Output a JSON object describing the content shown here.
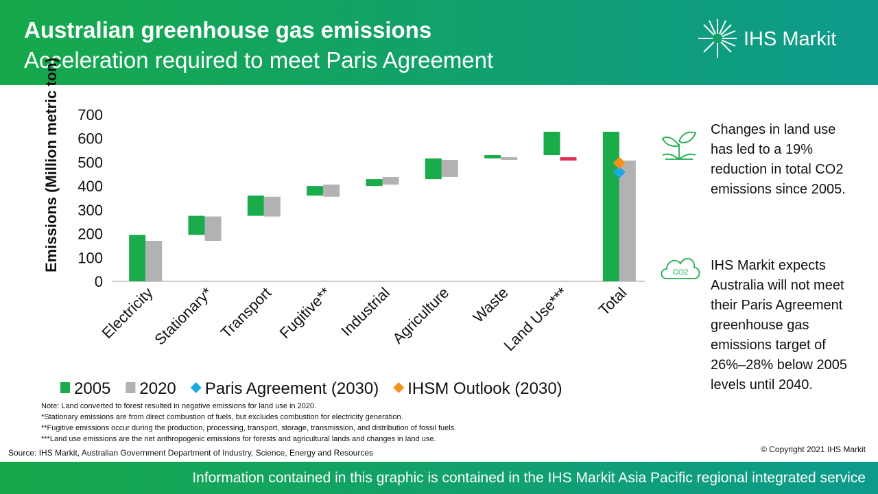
{
  "header": {
    "title": "Australian greenhouse gas emissions",
    "subtitle": "Acceleration required to meet Paris Agreement",
    "logo": "IHS Markit"
  },
  "chart_data": {
    "type": "waterfall",
    "y_label": "Emissions (Million metric ton)",
    "categories": [
      "Electricity",
      "Stationary*",
      "Transport",
      "Fugitive**",
      "Industrial",
      "Agriculture",
      "Waste",
      "Land Use***",
      "Total"
    ],
    "series": [
      {
        "name": "2005",
        "color": "#1aab4b",
        "values": [
          195,
          80,
          85,
          40,
          29,
          87,
          14,
          98,
          628
        ]
      },
      {
        "name": "2020",
        "color": "#b2b2b2",
        "negative_color": "#e0314f",
        "values": [
          170,
          102,
          83,
          51,
          32,
          72,
          11,
          -14,
          507
        ]
      }
    ],
    "points": [
      {
        "name": "Paris Agreement (2030)",
        "color": "#1ba9e6",
        "values": [
          null,
          null,
          null,
          null,
          null,
          null,
          null,
          null,
          458
        ]
      },
      {
        "name": "IHSM Outlook (2030)",
        "color": "#f5921e",
        "values": [
          null,
          null,
          null,
          null,
          null,
          null,
          null,
          null,
          497
        ]
      }
    ],
    "ylim": [
      0,
      700
    ],
    "yticks": [
      0,
      100,
      200,
      300,
      400,
      500,
      600,
      700
    ],
    "grid": false
  },
  "side_notes": [
    {
      "text": "Changes in land use has led to a 19% reduction in total CO2 emissions since 2005."
    },
    {
      "icon_label": "CO2",
      "text": "IHS Markit expects Australia will not meet their Paris Agreement greenhouse gas emissions target of 26%–28% below 2005 levels until 2040."
    }
  ],
  "footnotes": [
    "Note: Land converted to forest resulted in negative emissions for land use in 2020.",
    "*Stationary emissions are from direct combustion of fuels, but excludes combustion for electricity generation.",
    "**Fugitive emissions occur during the production, processing, transport, storage, transmission, and distribution of fossil fuels.",
    "***Land use emissions are the net anthropogenic emissions for forests and agricultural lands and changes in land use."
  ],
  "source": "Source: IHS Markit, Australian Government Department of Industry, Science, Energy and Resources",
  "copyright": "© Copyright 2021 IHS Markit",
  "footer": "Information contained in this graphic is contained in the IHS Markit Asia Pacific regional integrated service"
}
